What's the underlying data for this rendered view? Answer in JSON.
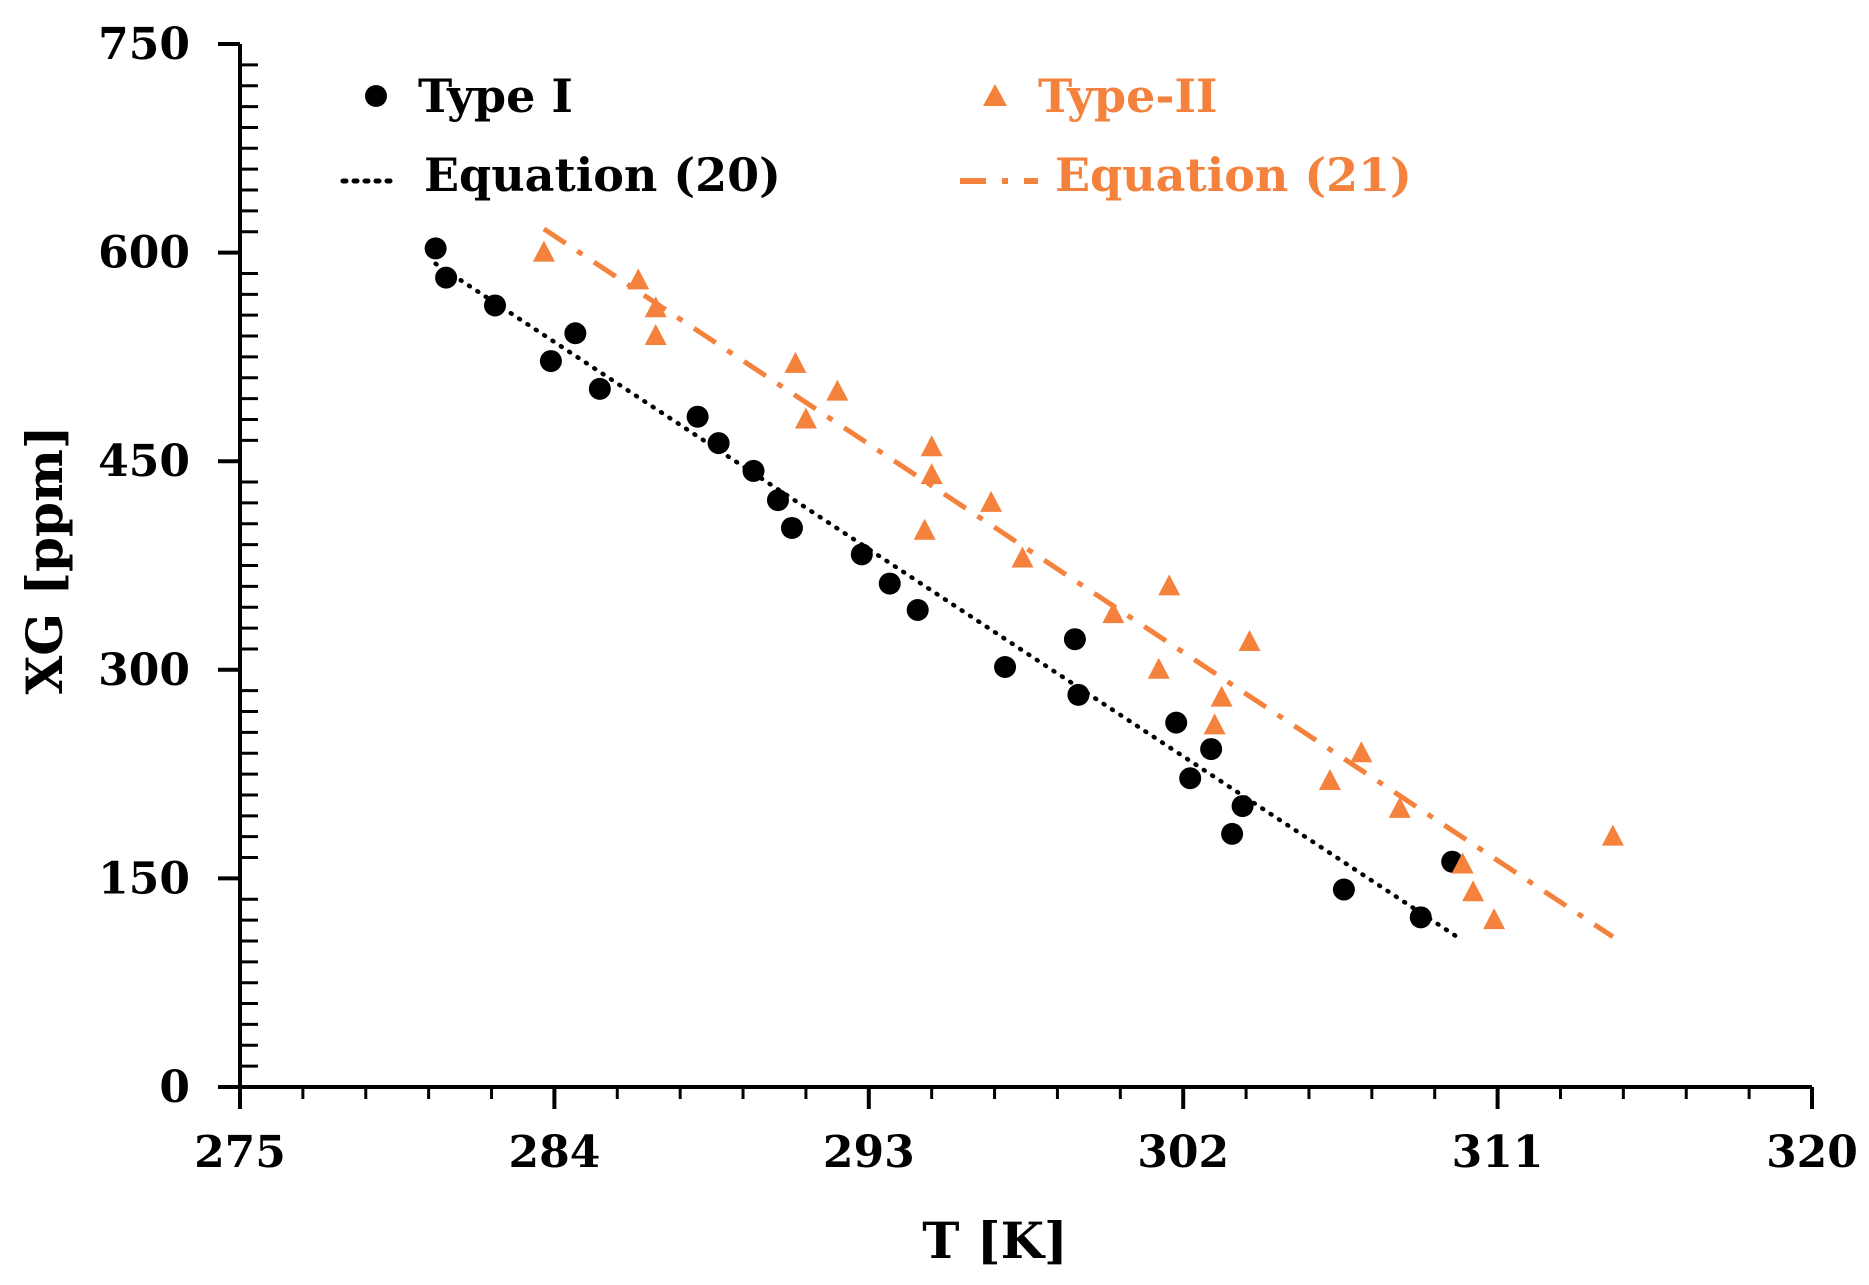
{
  "colors": {
    "type1": "#000000",
    "type2": "#f4823d",
    "axis": "#000000",
    "background": "#ffffff"
  },
  "chart_data": {
    "type": "scatter",
    "title": "",
    "xlabel": "T [K]",
    "ylabel": "XG [ppm]",
    "xlim": [
      275,
      320
    ],
    "ylim": [
      0,
      750
    ],
    "xticks": [
      275,
      284,
      293,
      302,
      311,
      320
    ],
    "xticks_minor": [
      276.8,
      278.6,
      280.4,
      282.2,
      285.8,
      287.6,
      289.4,
      291.2,
      294.8,
      296.6,
      298.4,
      300.2,
      303.8,
      305.6,
      307.4,
      309.2,
      312.8,
      314.6,
      316.4,
      318.2
    ],
    "yticks": [
      0,
      150,
      300,
      450,
      600,
      750
    ],
    "yticks_minor": [
      15,
      30,
      45,
      60,
      75,
      90,
      105,
      120,
      135,
      165,
      180,
      195,
      210,
      225,
      240,
      255,
      270,
      285,
      315,
      330,
      345,
      360,
      375,
      390,
      405,
      420,
      435,
      465,
      480,
      495,
      510,
      525,
      540,
      555,
      570,
      585,
      615,
      630,
      645,
      660,
      675,
      690,
      705,
      720,
      735
    ],
    "xtick_labels": [
      "275",
      "284",
      "293",
      "302",
      "311",
      "320"
    ],
    "ytick_labels": [
      "0",
      "150",
      "300",
      "450",
      "600",
      "750"
    ],
    "grid": false,
    "legend_position": "top",
    "legend": {
      "type1": "Type I",
      "type2": "Type-II",
      "eq20": "Equation (20)",
      "eq21": "Equation (21)"
    },
    "series": [
      {
        "name": "Type I",
        "kind": "points",
        "marker": "circle",
        "color": "#000000",
        "points": [
          [
            280.6,
            603
          ],
          [
            280.9,
            582
          ],
          [
            282.3,
            562
          ],
          [
            283.9,
            522
          ],
          [
            284.6,
            542
          ],
          [
            285.3,
            502
          ],
          [
            288.1,
            482
          ],
          [
            288.7,
            463
          ],
          [
            289.7,
            443
          ],
          [
            290.4,
            422
          ],
          [
            290.8,
            402
          ],
          [
            292.8,
            383
          ],
          [
            293.6,
            362
          ],
          [
            294.4,
            343
          ],
          [
            296.9,
            302
          ],
          [
            298.9,
            322
          ],
          [
            299.0,
            282
          ],
          [
            301.8,
            262
          ],
          [
            302.2,
            222
          ],
          [
            302.8,
            243
          ],
          [
            303.4,
            182
          ],
          [
            303.7,
            202
          ],
          [
            306.6,
            142
          ],
          [
            308.8,
            122
          ],
          [
            309.7,
            162
          ]
        ]
      },
      {
        "name": "Type-II",
        "kind": "points",
        "marker": "triangle",
        "color": "#f4823d",
        "points": [
          [
            283.7,
            600
          ],
          [
            286.4,
            580
          ],
          [
            286.9,
            560
          ],
          [
            286.9,
            540
          ],
          [
            290.9,
            520
          ],
          [
            291.2,
            480
          ],
          [
            292.1,
            500
          ],
          [
            294.6,
            400
          ],
          [
            294.8,
            460
          ],
          [
            294.8,
            440
          ],
          [
            296.5,
            420
          ],
          [
            297.4,
            380
          ],
          [
            300.0,
            340
          ],
          [
            301.3,
            300
          ],
          [
            301.6,
            360
          ],
          [
            302.9,
            260
          ],
          [
            303.1,
            280
          ],
          [
            303.9,
            320
          ],
          [
            306.2,
            220
          ],
          [
            307.1,
            240
          ],
          [
            308.2,
            200
          ],
          [
            310.0,
            160
          ],
          [
            310.3,
            140
          ],
          [
            310.9,
            120
          ],
          [
            314.3,
            180
          ]
        ]
      },
      {
        "name": "Equation (20)",
        "kind": "line",
        "style": "dotted",
        "color": "#000000",
        "points": [
          [
            280.6,
            592
          ],
          [
            309.9,
            107
          ]
        ]
      },
      {
        "name": "Equation (21)",
        "kind": "line",
        "style": "dash-dot",
        "color": "#f4823d",
        "points": [
          [
            283.7,
            617
          ],
          [
            314.3,
            108
          ]
        ]
      }
    ]
  }
}
